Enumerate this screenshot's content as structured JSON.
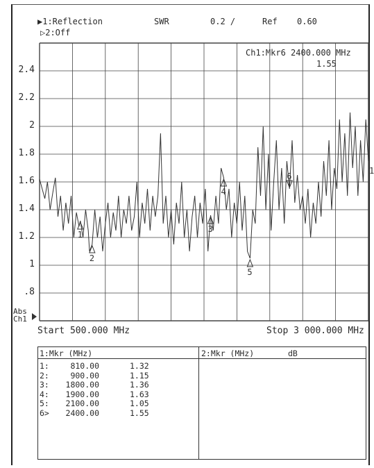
{
  "header": {
    "ch1_label": "▶1:Reflection",
    "ch2_label": "▷2:Off",
    "format": "SWR",
    "scale": "0.2 /",
    "ref_label": "Ref",
    "ref_value": "0.60"
  },
  "active_marker": {
    "line1": "Ch1:Mkr6 2400.000 MHz",
    "line2": "1.55"
  },
  "axis": {
    "abs_label": "Abs",
    "ch_label": "Ch1",
    "start": "Start 500.000 MHz",
    "stop": "Stop 3 000.000 MHz",
    "ref_marker": "1"
  },
  "marker_table": {
    "left_header": "1:Mkr (MHz)",
    "right_header": "2:Mkr (MHz)",
    "right_unit": "dB",
    "rows": [
      {
        "id": "1:",
        "freq": "810.00",
        "value": "1.32"
      },
      {
        "id": "2:",
        "freq": "900.00",
        "value": "1.15"
      },
      {
        "id": "3:",
        "freq": "1800.00",
        "value": "1.36"
      },
      {
        "id": "4:",
        "freq": "1900.00",
        "value": "1.63"
      },
      {
        "id": "5:",
        "freq": "2100.00",
        "value": "1.05"
      },
      {
        "id": "6>",
        "freq": "2400.00",
        "value": "1.55"
      }
    ]
  },
  "chart_data": {
    "type": "line",
    "xlabel": "",
    "ylabel": "",
    "xlim": [
      500,
      3000
    ],
    "ylim": [
      0.6,
      2.6
    ],
    "yticks": [
      "2.4",
      "2.2",
      "2",
      "1.8",
      "1.6",
      "1.4",
      "1.2",
      "1",
      ".8"
    ],
    "grid": true,
    "line_color": "#333333",
    "series": [
      {
        "x": [
          500,
          520,
          540,
          560,
          580,
          600,
          620,
          640,
          660,
          680,
          700,
          720,
          740,
          760,
          780,
          800,
          810,
          830,
          850,
          870,
          880,
          900,
          920,
          940,
          960,
          980,
          1000,
          1020,
          1040,
          1060,
          1080,
          1100,
          1120,
          1140,
          1160,
          1180,
          1200,
          1220,
          1240,
          1260,
          1280,
          1300,
          1320,
          1340,
          1360,
          1380,
          1400,
          1420,
          1440,
          1460,
          1480,
          1500,
          1520,
          1540,
          1560,
          1580,
          1600,
          1620,
          1640,
          1660,
          1680,
          1700,
          1720,
          1740,
          1760,
          1780,
          1800,
          1820,
          1840,
          1860,
          1880,
          1900,
          1920,
          1940,
          1960,
          1980,
          2000,
          2020,
          2040,
          2060,
          2080,
          2100,
          2120,
          2140,
          2160,
          2180,
          2200,
          2220,
          2240,
          2260,
          2280,
          2300,
          2320,
          2340,
          2360,
          2380,
          2400,
          2420,
          2440,
          2460,
          2480,
          2500,
          2520,
          2540,
          2560,
          2580,
          2600,
          2620,
          2640,
          2660,
          2680,
          2700,
          2720,
          2740,
          2760,
          2780,
          2800,
          2820,
          2840,
          2860,
          2880,
          2900,
          2920,
          2940,
          2960,
          2980,
          3000
        ],
        "y": [
          1.62,
          1.55,
          1.48,
          1.6,
          1.4,
          1.52,
          1.63,
          1.35,
          1.5,
          1.25,
          1.45,
          1.3,
          1.5,
          1.2,
          1.38,
          1.28,
          1.32,
          1.2,
          1.4,
          1.25,
          1.1,
          1.15,
          1.4,
          1.2,
          1.35,
          1.1,
          1.3,
          1.45,
          1.2,
          1.38,
          1.25,
          1.5,
          1.2,
          1.4,
          1.3,
          1.5,
          1.25,
          1.35,
          1.6,
          1.2,
          1.45,
          1.3,
          1.55,
          1.25,
          1.5,
          1.35,
          1.5,
          1.95,
          1.3,
          1.5,
          1.2,
          1.4,
          1.15,
          1.45,
          1.3,
          1.6,
          1.2,
          1.4,
          1.1,
          1.35,
          1.5,
          1.2,
          1.45,
          1.3,
          1.55,
          1.1,
          1.36,
          1.25,
          1.5,
          1.3,
          1.7,
          1.63,
          1.4,
          1.55,
          1.2,
          1.45,
          1.3,
          1.6,
          1.25,
          1.5,
          1.1,
          1.05,
          1.4,
          1.3,
          1.85,
          1.5,
          2.0,
          1.4,
          1.8,
          1.25,
          1.6,
          1.9,
          1.4,
          1.7,
          1.3,
          1.75,
          1.55,
          1.9,
          1.45,
          1.65,
          1.4,
          1.5,
          1.3,
          1.55,
          1.2,
          1.45,
          1.3,
          1.6,
          1.35,
          1.75,
          1.5,
          1.9,
          1.4,
          1.7,
          1.55,
          2.05,
          1.6,
          1.95,
          1.5,
          2.1,
          1.7,
          2.0,
          1.5,
          1.9,
          1.6,
          2.05,
          1.75
        ]
      }
    ],
    "markers": [
      {
        "label": "1",
        "x": 810,
        "y": 1.32,
        "arrow": "up"
      },
      {
        "label": "2",
        "x": 900,
        "y": 1.15,
        "arrow": "up"
      },
      {
        "label": "3",
        "x": 1800,
        "y": 1.36,
        "arrow": "up"
      },
      {
        "label": "4",
        "x": 1900,
        "y": 1.63,
        "arrow": "up"
      },
      {
        "label": "5",
        "x": 2100,
        "y": 1.05,
        "arrow": "up"
      },
      {
        "label": "6",
        "x": 2400,
        "y": 1.55,
        "arrow": "down"
      }
    ]
  }
}
